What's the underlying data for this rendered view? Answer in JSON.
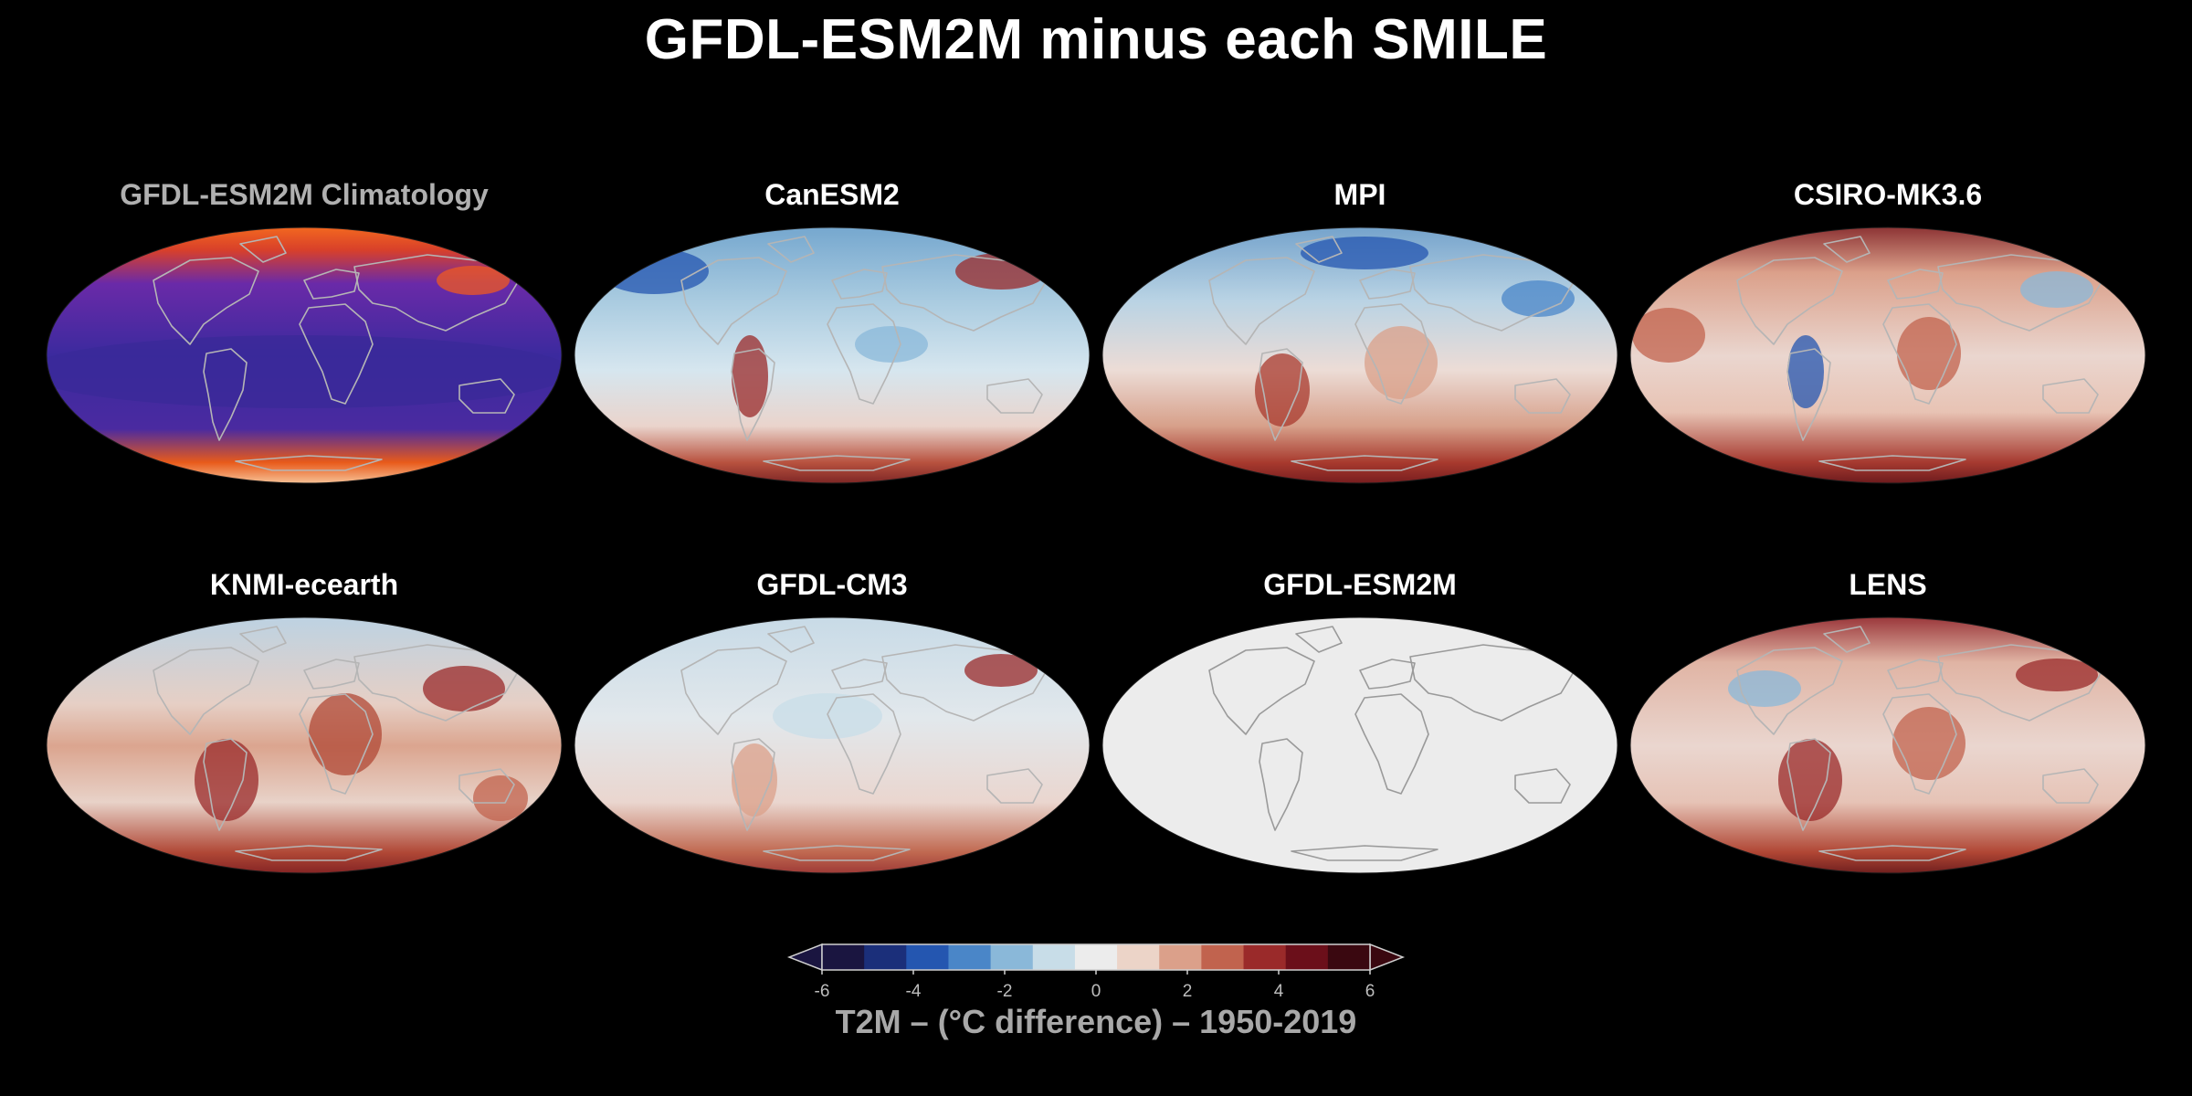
{
  "figure": {
    "title": "GFDL-ESM2M minus each SMILE",
    "panels": [
      {
        "title": "GFDL-ESM2M Climatology",
        "style": "climatology",
        "dim_title": true
      },
      {
        "title": "CanESM2",
        "style": "canesm2"
      },
      {
        "title": "MPI",
        "style": "mpi"
      },
      {
        "title": "CSIRO-MK3.6",
        "style": "csiro"
      },
      {
        "title": "KNMI-ecearth",
        "style": "knmi"
      },
      {
        "title": "GFDL-CM3",
        "style": "cm3"
      },
      {
        "title": "GFDL-ESM2M",
        "style": "blank"
      },
      {
        "title": "LENS",
        "style": "lens"
      }
    ],
    "colorbar": {
      "ticks": [
        "-6",
        "-4",
        "-2",
        "0",
        "2",
        "4",
        "6"
      ],
      "label": "T2M – (°C difference) – 1950-2019",
      "colors": [
        "#1a1540",
        "#1b2f7a",
        "#2456b0",
        "#4a86c8",
        "#8ab8d9",
        "#c8dde8",
        "#ececec",
        "#ecd4c8",
        "#dba08a",
        "#c1634e",
        "#9a2a2a",
        "#6b0f1a",
        "#3a0810"
      ]
    }
  }
}
